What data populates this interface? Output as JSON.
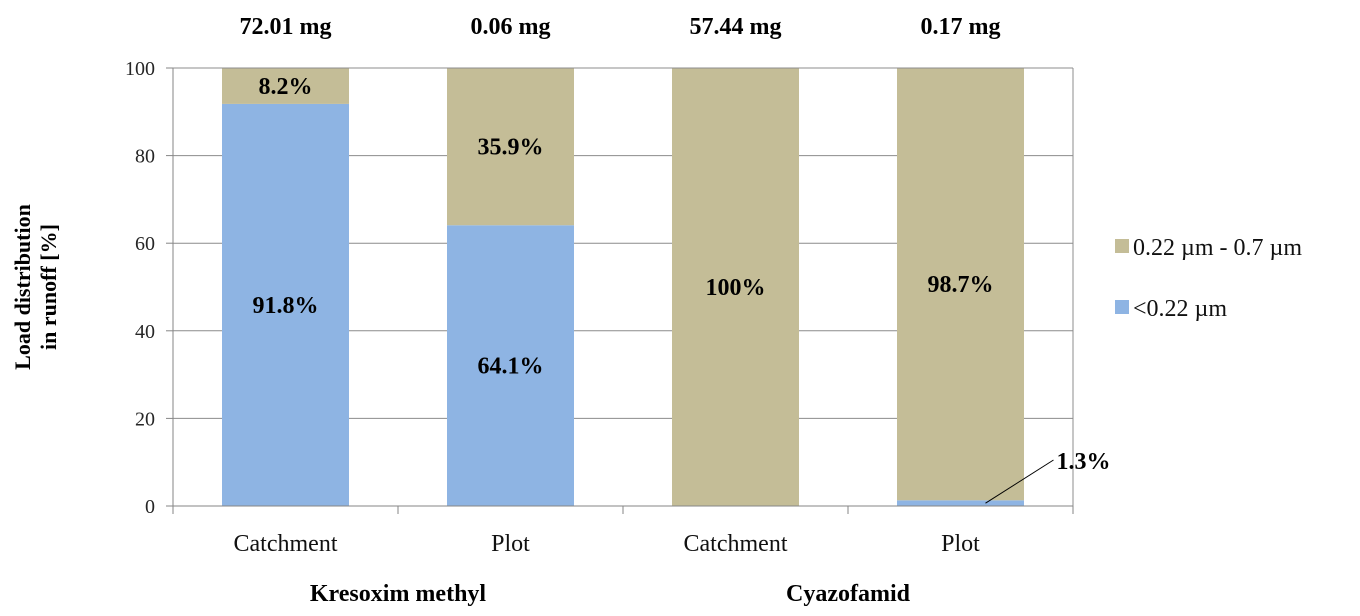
{
  "chart_data": {
    "type": "bar",
    "stacked": true,
    "ylabel_lines": [
      "Load distribution",
      "in runoff [%]"
    ],
    "ylim": [
      0,
      100
    ],
    "yticks": [
      0,
      20,
      40,
      60,
      80,
      100
    ],
    "grid": true,
    "legend_position": "right",
    "categories": [
      "Catchment",
      "Plot",
      "Catchment",
      "Plot"
    ],
    "groups": [
      {
        "label": "Kresoxim methyl",
        "categories": [
          0,
          1
        ]
      },
      {
        "label": "Cyazofamid",
        "categories": [
          2,
          3
        ]
      }
    ],
    "totals": [
      "72.01 mg",
      "0.06 mg",
      "57.44 mg",
      "0.17 mg"
    ],
    "series": [
      {
        "name": "<0.22 µm",
        "color": "#8EB4E3",
        "values": [
          91.8,
          64.1,
          0,
          1.3
        ],
        "labels": [
          "91.8%",
          "64.1%",
          "",
          "1.3%"
        ]
      },
      {
        "name": "0.22 µm - 0.7 µm",
        "color": "#C4BD97",
        "values": [
          8.2,
          35.9,
          100,
          98.7
        ],
        "labels": [
          "8.2%",
          "35.9%",
          "100%",
          "98.7%"
        ]
      }
    ],
    "legend_order": [
      1,
      0
    ]
  }
}
